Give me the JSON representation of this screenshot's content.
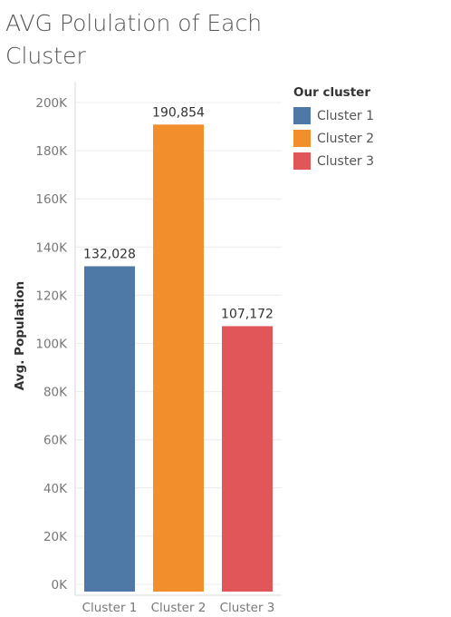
{
  "chart_data": {
    "type": "bar",
    "title": "AVG Polulation of Each Cluster",
    "categories": [
      "Cluster 1",
      "Cluster 2",
      "Cluster 3"
    ],
    "values": [
      132028,
      190854,
      107172
    ],
    "value_labels": [
      "132,028",
      "190,854",
      "107,172"
    ],
    "colors": [
      "#4e79a7",
      "#f28e2b",
      "#e15759"
    ],
    "ylabel": "Avg. Population",
    "xlabel": "",
    "ylim": [
      0,
      200000
    ],
    "yticks": [
      0,
      20000,
      40000,
      60000,
      80000,
      100000,
      120000,
      140000,
      160000,
      180000,
      200000
    ],
    "ytick_labels": [
      "0K",
      "20K",
      "40K",
      "60K",
      "80K",
      "100K",
      "120K",
      "140K",
      "160K",
      "180K",
      "200K"
    ],
    "grid": true,
    "legend": {
      "title": "Our cluster",
      "placement": "right",
      "items": [
        "Cluster 1",
        "Cluster 2",
        "Cluster 3"
      ]
    }
  }
}
